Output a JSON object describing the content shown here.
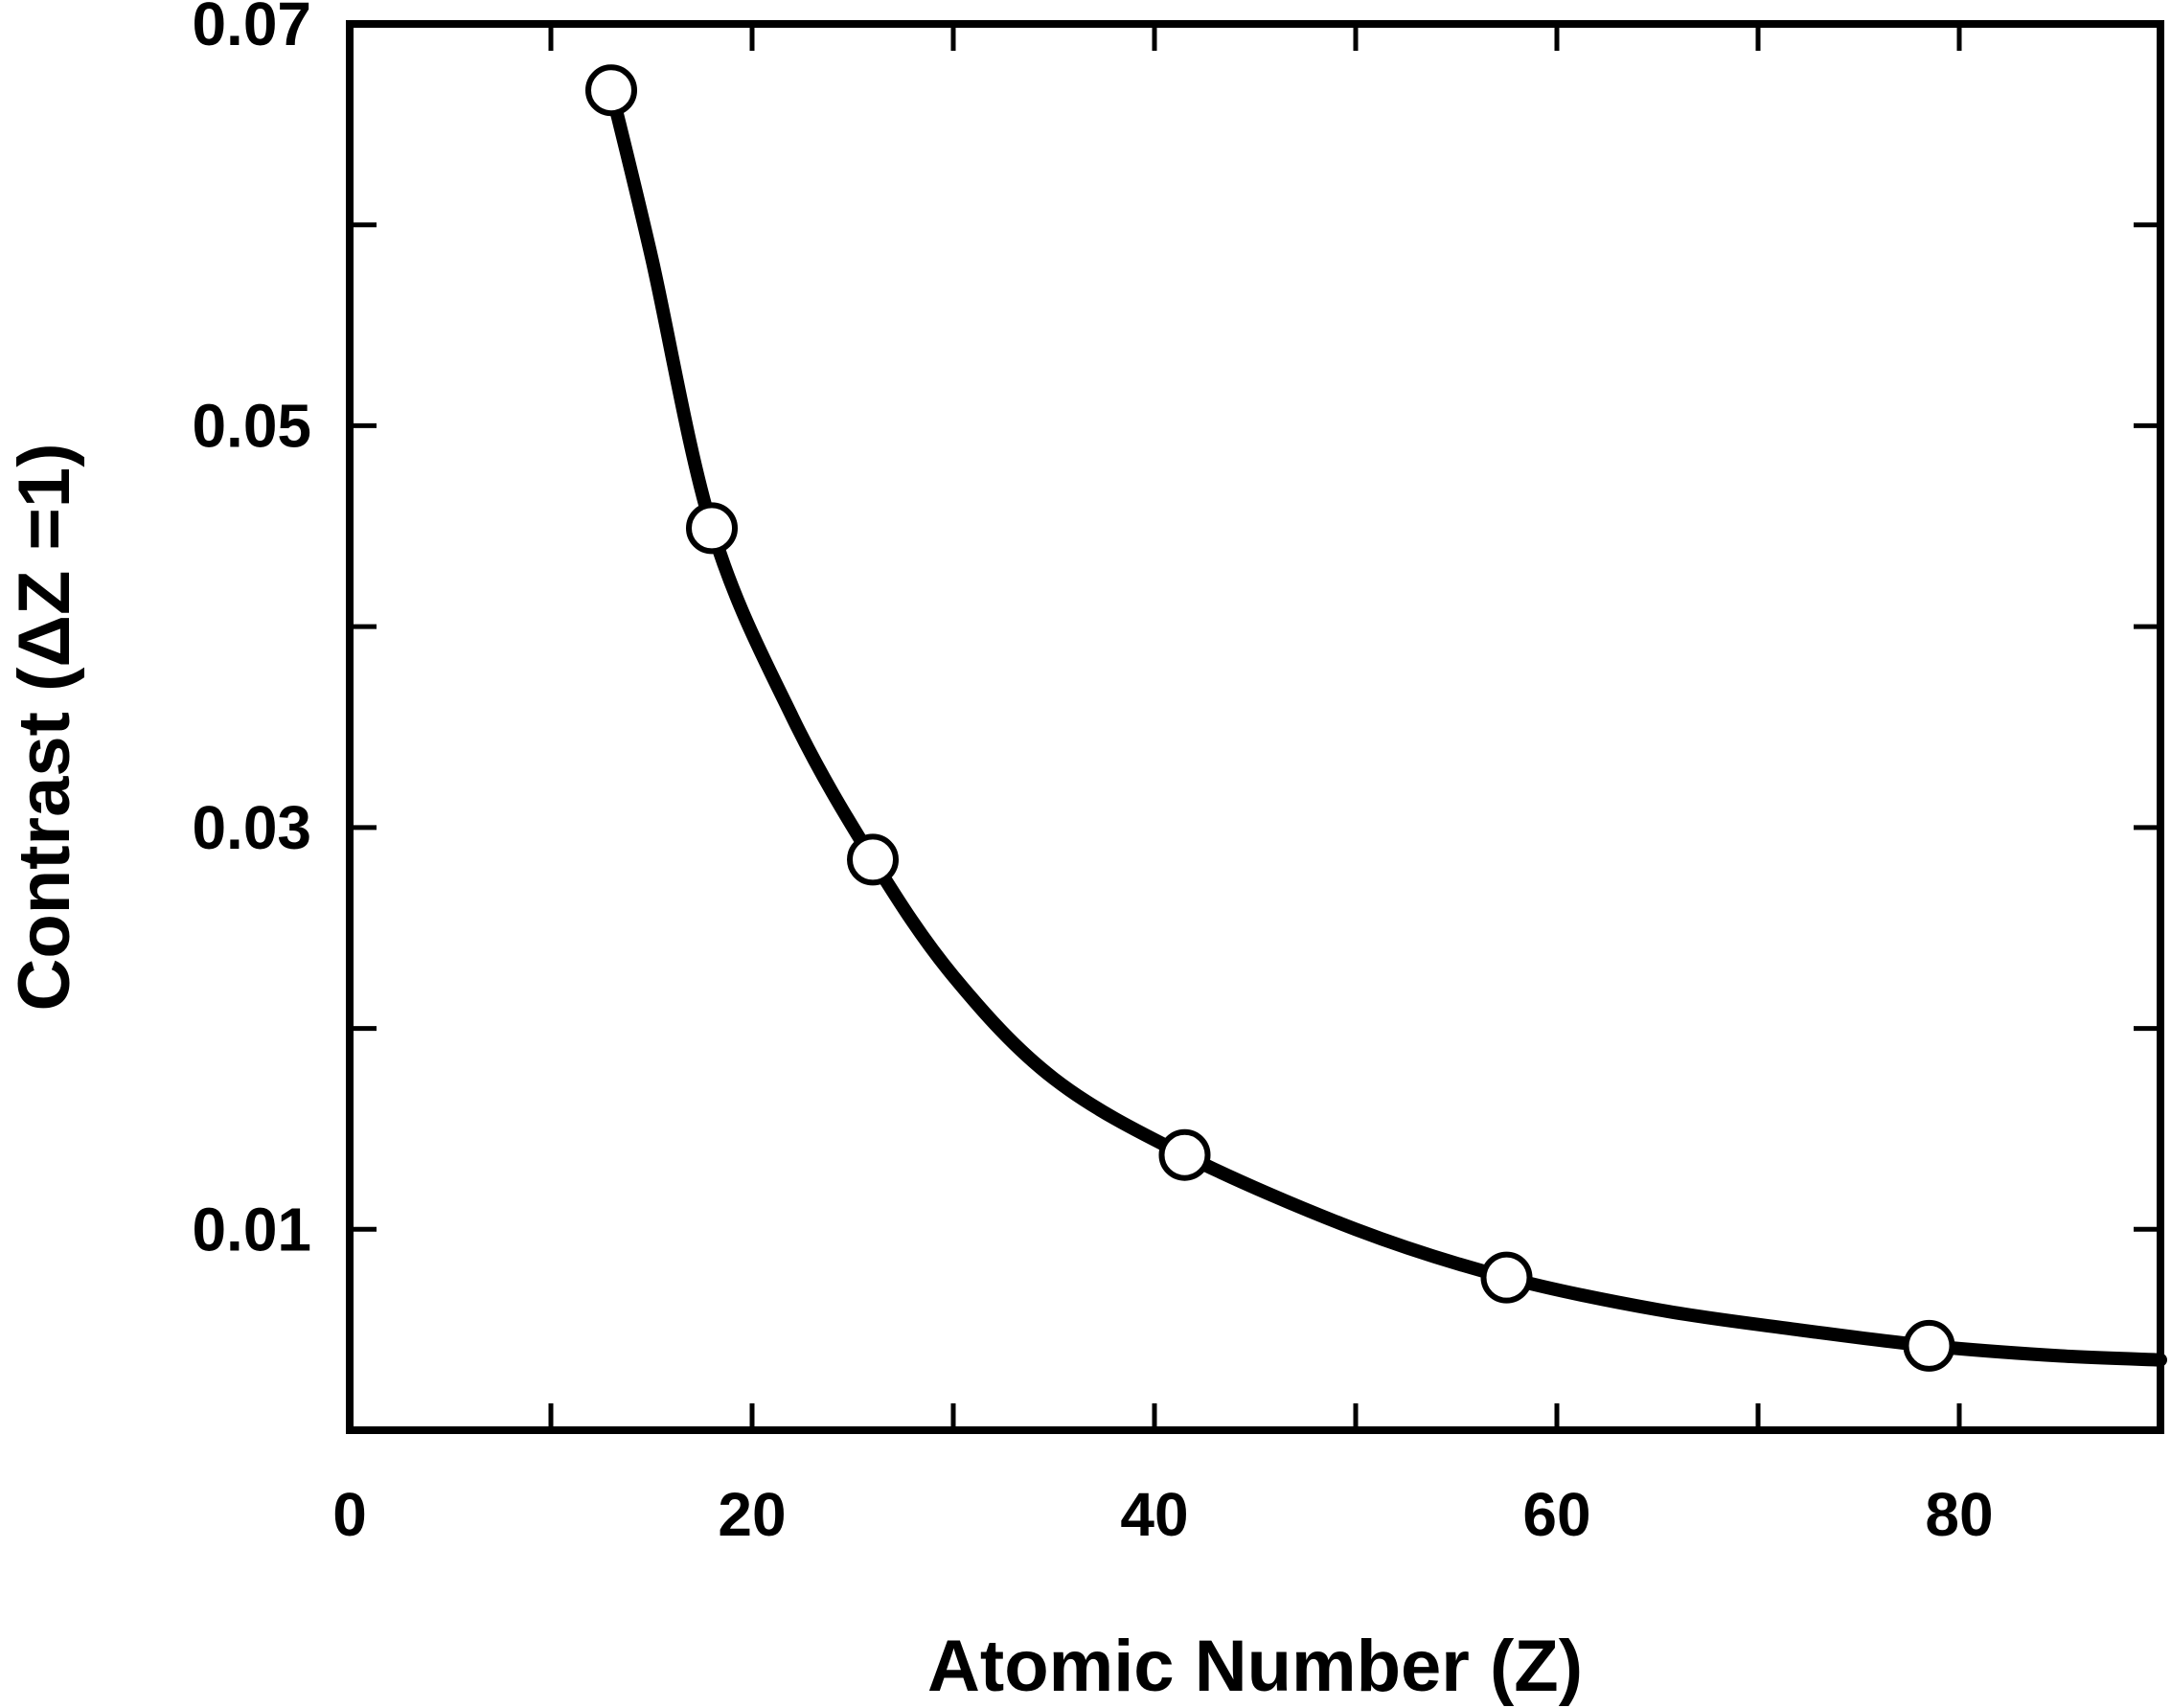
{
  "chart_data": {
    "type": "line",
    "xlabel": "Atomic Number (Z)",
    "ylabel": "Contrast (ΔZ =1)",
    "xlim": [
      0,
      90
    ],
    "ylim": [
      0,
      0.07
    ],
    "x_ticks": [
      0,
      20,
      40,
      60,
      80
    ],
    "x_tick_labels": [
      "0",
      "20",
      "40",
      "60",
      "80"
    ],
    "x_minor_ticks": [
      10,
      30,
      50,
      70
    ],
    "y_ticks": [
      0.01,
      0.03,
      0.05,
      0.07
    ],
    "y_tick_labels": [
      "0.01",
      "0.03",
      "0.05",
      "0.07"
    ],
    "y_minor_ticks": [
      0.02,
      0.04,
      0.06
    ],
    "grid": false,
    "legend": "none",
    "line_color": "#000000",
    "marker_fill": "#ffffff",
    "series": [
      {
        "kind": "points",
        "x": [
          13,
          18,
          26,
          41.5,
          57.5,
          78.5
        ],
        "y": [
          0.0667,
          0.0449,
          0.0284,
          0.0137,
          0.0076,
          0.0042
        ]
      },
      {
        "kind": "curve",
        "x": [
          13,
          15,
          18,
          22,
          26,
          30,
          35,
          41.5,
          50,
          57.5,
          65,
          72,
          78.5,
          85,
          90
        ],
        "y": [
          0.0667,
          0.0584,
          0.0449,
          0.0355,
          0.0284,
          0.0226,
          0.0175,
          0.0137,
          0.01,
          0.0076,
          0.006,
          0.005,
          0.0042,
          0.0037,
          0.0035
        ]
      }
    ]
  }
}
